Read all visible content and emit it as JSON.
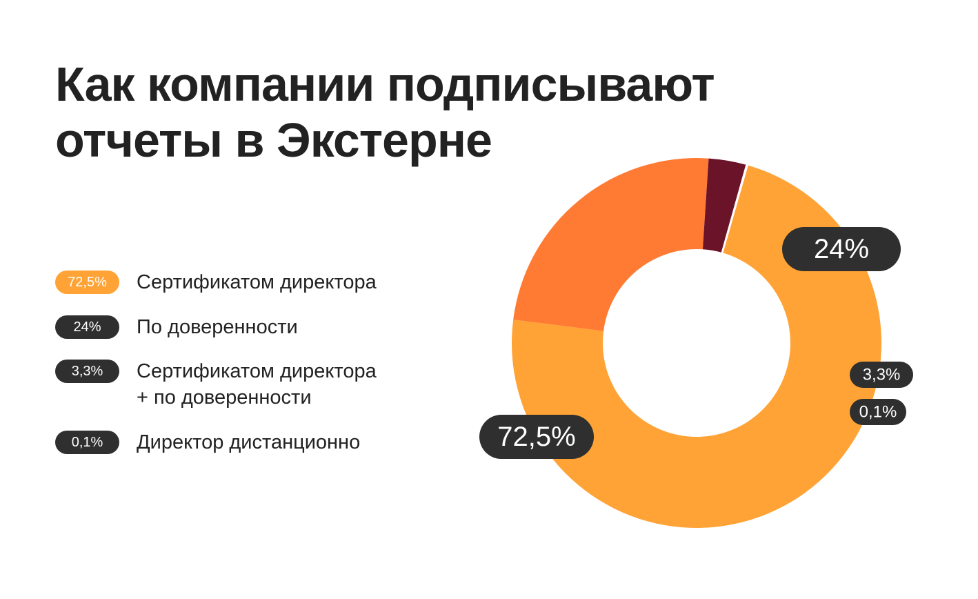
{
  "title": {
    "line1": "Как компании подписывают",
    "line2": "отчеты в Экстерне"
  },
  "legend": [
    {
      "badge": "72,5%",
      "label": "Сертификатом директора",
      "label2": "",
      "badge_color": "#FFA336"
    },
    {
      "badge": "24%",
      "label": "По доверенности",
      "label2": "",
      "badge_color": "#2F2F2F"
    },
    {
      "badge": "3,3%",
      "label": "Сертификатом директора",
      "label2": "+ по доверенности",
      "badge_color": "#2F2F2F"
    },
    {
      "badge": "0,1%",
      "label": "Директор дистанционно",
      "label2": "",
      "badge_color": "#2F2F2F"
    }
  ],
  "chart_data": {
    "type": "pie",
    "style": "donut",
    "slices": [
      {
        "category": "Сертификатом директора",
        "value": 72.5,
        "label": "72,5%",
        "color": "#FFA336"
      },
      {
        "category": "По доверенности",
        "value": 24,
        "label": "24%",
        "color": "#FF7A33"
      },
      {
        "category": "Сертификатом директора + по доверенности",
        "value": 3.3,
        "label": "3,3%",
        "color": "#6B1328"
      },
      {
        "category": "Директор дистанционно",
        "value": 0.1,
        "label": "0,1%",
        "color": "#FFFFFF"
      }
    ],
    "label_badge_color": "#2F2F2F"
  }
}
